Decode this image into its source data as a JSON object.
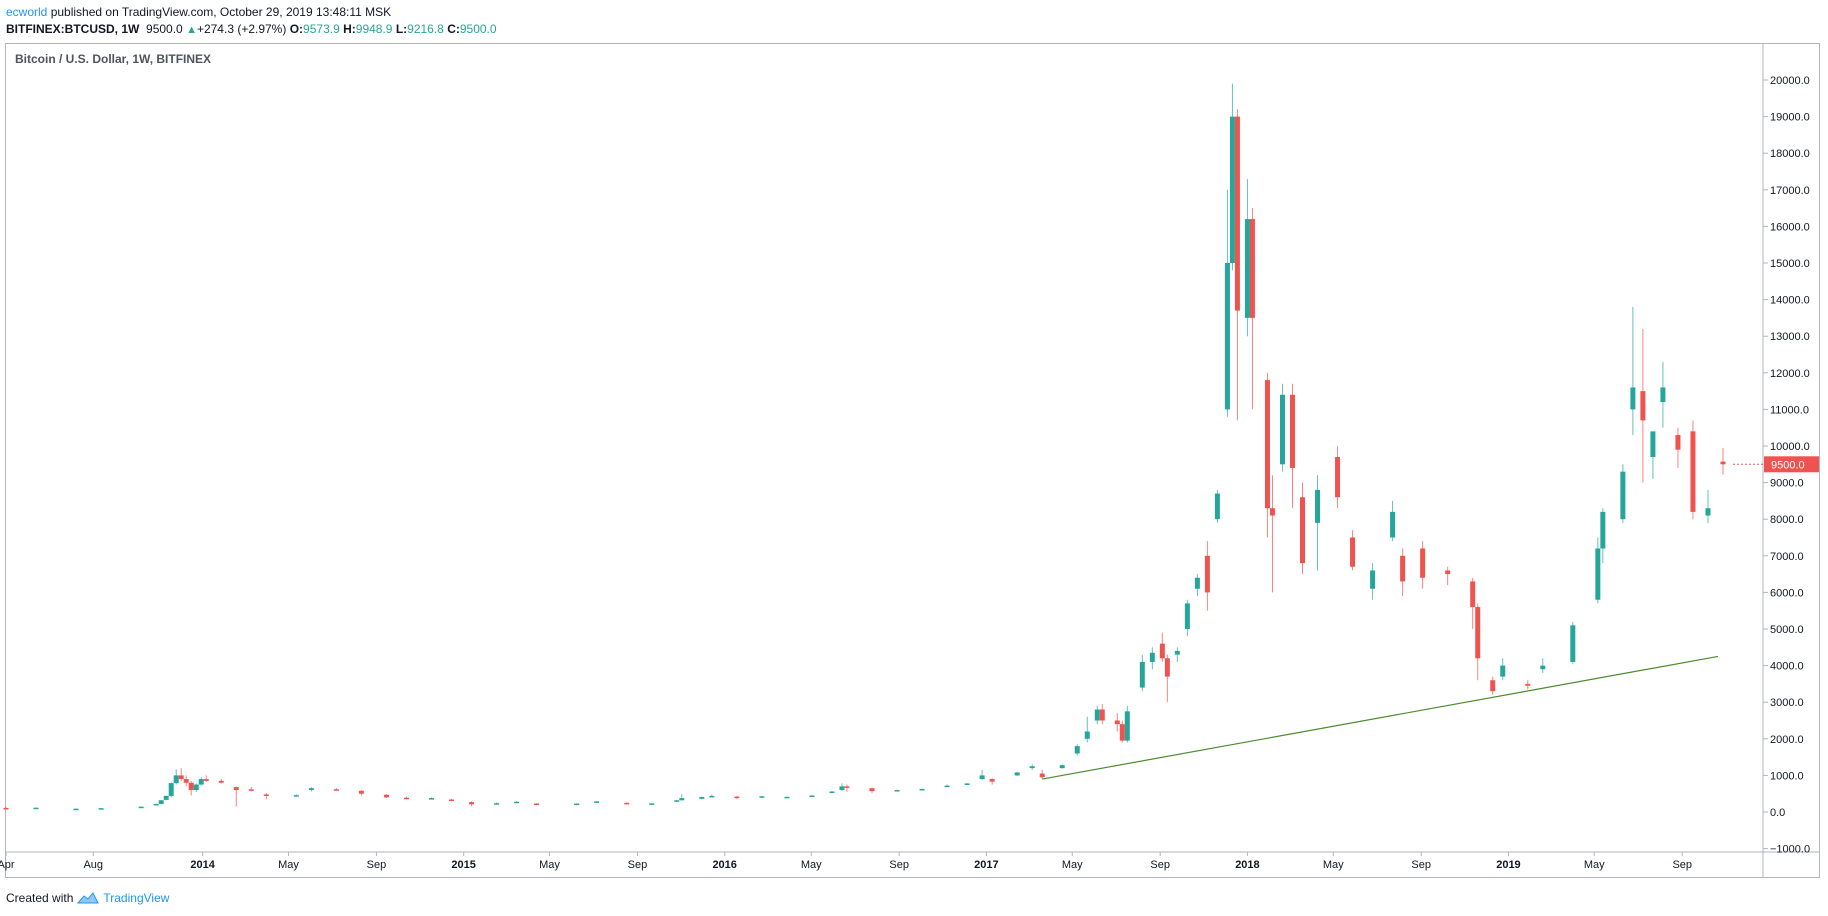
{
  "header": {
    "author": "ecworld",
    "published_text": " published on TradingView.com, October 29, 2019 13:48:11 MSK",
    "symbol": "BITFINEX:BTCUSD, 1W",
    "last": "9500.0",
    "change": "+274.3 (+2.97%)",
    "open_label": "O:",
    "open": "9573.9",
    "high_label": "H:",
    "high": "9948.9",
    "low_label": "L:",
    "low": "9216.8",
    "close_label": "C:",
    "close": "9500.0"
  },
  "footer": {
    "created_with": "Created with",
    "brand": "TradingView"
  },
  "colors": {
    "up": "#26a69a",
    "down": "#ef5350",
    "trendline": "#4b8b2f",
    "axis": "#b2b5be",
    "price_label_bg": "#ef5350"
  },
  "chart_data": {
    "type": "candlestick",
    "title": "Bitcoin / U.S. Dollar, 1W, BITFINEX",
    "ylim": [
      -1000,
      20500
    ],
    "y_ticks": [
      -1000,
      0,
      1000,
      2000,
      3000,
      4000,
      5000,
      6000,
      7000,
      8000,
      9000,
      10000,
      11000,
      12000,
      13000,
      14000,
      15000,
      16000,
      17000,
      18000,
      19000,
      20000
    ],
    "y_tick_labels": [
      "−1000.0",
      "0.0",
      "1000.0",
      "2000.0",
      "3000.0",
      "4000.0",
      "5000.0",
      "6000.0",
      "7000.0",
      "8000.0",
      "9000.0",
      "10000.0",
      "11000.0",
      "12000.0",
      "13000.0",
      "14000.0",
      "15000.0",
      "16000.0",
      "17000.0",
      "18000.0",
      "19000.0",
      "20000.0"
    ],
    "x_ticks": [
      {
        "date": "2013-04-01",
        "label": "Apr",
        "bold": false
      },
      {
        "date": "2013-08-01",
        "label": "Aug",
        "bold": false
      },
      {
        "date": "2014-01-01",
        "label": "2014",
        "bold": true
      },
      {
        "date": "2014-05-01",
        "label": "May",
        "bold": false
      },
      {
        "date": "2014-09-01",
        "label": "Sep",
        "bold": false
      },
      {
        "date": "2015-01-01",
        "label": "2015",
        "bold": true
      },
      {
        "date": "2015-05-01",
        "label": "May",
        "bold": false
      },
      {
        "date": "2015-09-01",
        "label": "Sep",
        "bold": false
      },
      {
        "date": "2016-01-01",
        "label": "2016",
        "bold": true
      },
      {
        "date": "2016-05-01",
        "label": "May",
        "bold": false
      },
      {
        "date": "2016-09-01",
        "label": "Sep",
        "bold": false
      },
      {
        "date": "2017-01-01",
        "label": "2017",
        "bold": true
      },
      {
        "date": "2017-05-01",
        "label": "May",
        "bold": false
      },
      {
        "date": "2017-09-01",
        "label": "Sep",
        "bold": false
      },
      {
        "date": "2018-01-01",
        "label": "2018",
        "bold": true
      },
      {
        "date": "2018-05-01",
        "label": "May",
        "bold": false
      },
      {
        "date": "2018-09-01",
        "label": "Sep",
        "bold": false
      },
      {
        "date": "2019-01-01",
        "label": "2019",
        "bold": true
      },
      {
        "date": "2019-05-01",
        "label": "May",
        "bold": false
      },
      {
        "date": "2019-09-01",
        "label": "Sep",
        "bold": false
      }
    ],
    "last_price_label": "9500.0",
    "last_price": 9500,
    "trendline": [
      {
        "date": "2017-03-20",
        "value": 900
      },
      {
        "date": "2019-10-21",
        "value": 4250
      }
    ],
    "candles": [
      {
        "date": "2013-04-01",
        "o": 110,
        "h": 140,
        "l": 70,
        "c": 100
      },
      {
        "date": "2013-05-13",
        "o": 115,
        "h": 125,
        "l": 100,
        "c": 118
      },
      {
        "date": "2013-07-08",
        "o": 80,
        "h": 95,
        "l": 70,
        "c": 90
      },
      {
        "date": "2013-08-12",
        "o": 100,
        "h": 110,
        "l": 95,
        "c": 105
      },
      {
        "date": "2013-10-07",
        "o": 130,
        "h": 150,
        "l": 120,
        "c": 145
      },
      {
        "date": "2013-10-28",
        "o": 190,
        "h": 230,
        "l": 180,
        "c": 220
      },
      {
        "date": "2013-11-04",
        "o": 220,
        "h": 330,
        "l": 210,
        "c": 320
      },
      {
        "date": "2013-11-11",
        "o": 330,
        "h": 450,
        "l": 320,
        "c": 440
      },
      {
        "date": "2013-11-18",
        "o": 440,
        "h": 800,
        "l": 400,
        "c": 790
      },
      {
        "date": "2013-11-25",
        "o": 790,
        "h": 1170,
        "l": 750,
        "c": 1000
      },
      {
        "date": "2013-12-02",
        "o": 1000,
        "h": 1200,
        "l": 850,
        "c": 900
      },
      {
        "date": "2013-12-09",
        "o": 900,
        "h": 1000,
        "l": 700,
        "c": 800
      },
      {
        "date": "2013-12-16",
        "o": 800,
        "h": 850,
        "l": 450,
        "c": 600
      },
      {
        "date": "2013-12-23",
        "o": 600,
        "h": 780,
        "l": 550,
        "c": 750
      },
      {
        "date": "2013-12-30",
        "o": 750,
        "h": 950,
        "l": 720,
        "c": 900
      },
      {
        "date": "2014-01-06",
        "o": 900,
        "h": 1000,
        "l": 820,
        "c": 850
      },
      {
        "date": "2014-01-27",
        "o": 850,
        "h": 900,
        "l": 780,
        "c": 800
      },
      {
        "date": "2014-02-17",
        "o": 680,
        "h": 700,
        "l": 150,
        "c": 600
      },
      {
        "date": "2014-03-10",
        "o": 620,
        "h": 680,
        "l": 560,
        "c": 580
      },
      {
        "date": "2014-03-31",
        "o": 480,
        "h": 520,
        "l": 350,
        "c": 460
      },
      {
        "date": "2014-05-12",
        "o": 450,
        "h": 480,
        "l": 430,
        "c": 460
      },
      {
        "date": "2014-06-02",
        "o": 600,
        "h": 680,
        "l": 560,
        "c": 650
      },
      {
        "date": "2014-07-07",
        "o": 620,
        "h": 650,
        "l": 590,
        "c": 610
      },
      {
        "date": "2014-08-11",
        "o": 580,
        "h": 600,
        "l": 450,
        "c": 500
      },
      {
        "date": "2014-09-15",
        "o": 470,
        "h": 490,
        "l": 380,
        "c": 400
      },
      {
        "date": "2014-10-13",
        "o": 390,
        "h": 420,
        "l": 350,
        "c": 380
      },
      {
        "date": "2014-11-17",
        "o": 380,
        "h": 400,
        "l": 360,
        "c": 380
      },
      {
        "date": "2014-12-15",
        "o": 340,
        "h": 360,
        "l": 300,
        "c": 320
      },
      {
        "date": "2015-01-12",
        "o": 270,
        "h": 290,
        "l": 160,
        "c": 210
      },
      {
        "date": "2015-02-16",
        "o": 240,
        "h": 260,
        "l": 220,
        "c": 240
      },
      {
        "date": "2015-03-16",
        "o": 270,
        "h": 300,
        "l": 260,
        "c": 280
      },
      {
        "date": "2015-04-13",
        "o": 230,
        "h": 240,
        "l": 220,
        "c": 225
      },
      {
        "date": "2015-06-08",
        "o": 225,
        "h": 235,
        "l": 220,
        "c": 230
      },
      {
        "date": "2015-07-06",
        "o": 270,
        "h": 300,
        "l": 260,
        "c": 290
      },
      {
        "date": "2015-08-17",
        "o": 250,
        "h": 260,
        "l": 200,
        "c": 230
      },
      {
        "date": "2015-09-21",
        "o": 230,
        "h": 240,
        "l": 225,
        "c": 235
      },
      {
        "date": "2015-10-26",
        "o": 280,
        "h": 330,
        "l": 275,
        "c": 320
      },
      {
        "date": "2015-11-02",
        "o": 320,
        "h": 490,
        "l": 310,
        "c": 380
      },
      {
        "date": "2015-11-30",
        "o": 360,
        "h": 420,
        "l": 350,
        "c": 410
      },
      {
        "date": "2015-12-14",
        "o": 420,
        "h": 470,
        "l": 400,
        "c": 440
      },
      {
        "date": "2016-01-18",
        "o": 420,
        "h": 440,
        "l": 360,
        "c": 380
      },
      {
        "date": "2016-02-22",
        "o": 420,
        "h": 440,
        "l": 400,
        "c": 430
      },
      {
        "date": "2016-03-28",
        "o": 410,
        "h": 420,
        "l": 400,
        "c": 415
      },
      {
        "date": "2016-05-02",
        "o": 440,
        "h": 460,
        "l": 430,
        "c": 450
      },
      {
        "date": "2016-05-30",
        "o": 530,
        "h": 570,
        "l": 510,
        "c": 560
      },
      {
        "date": "2016-06-13",
        "o": 600,
        "h": 780,
        "l": 580,
        "c": 700
      },
      {
        "date": "2016-06-20",
        "o": 700,
        "h": 750,
        "l": 550,
        "c": 660
      },
      {
        "date": "2016-07-25",
        "o": 650,
        "h": 670,
        "l": 520,
        "c": 570
      },
      {
        "date": "2016-08-29",
        "o": 570,
        "h": 610,
        "l": 560,
        "c": 600
      },
      {
        "date": "2016-10-03",
        "o": 610,
        "h": 640,
        "l": 600,
        "c": 630
      },
      {
        "date": "2016-11-07",
        "o": 700,
        "h": 750,
        "l": 680,
        "c": 720
      },
      {
        "date": "2016-12-05",
        "o": 750,
        "h": 790,
        "l": 740,
        "c": 780
      },
      {
        "date": "2016-12-26",
        "o": 900,
        "h": 1150,
        "l": 880,
        "c": 1000
      },
      {
        "date": "2017-01-09",
        "o": 900,
        "h": 920,
        "l": 750,
        "c": 830
      },
      {
        "date": "2017-02-13",
        "o": 1000,
        "h": 1100,
        "l": 980,
        "c": 1080
      },
      {
        "date": "2017-03-06",
        "o": 1200,
        "h": 1300,
        "l": 1150,
        "c": 1250
      },
      {
        "date": "2017-03-20",
        "o": 1050,
        "h": 1150,
        "l": 900,
        "c": 950
      },
      {
        "date": "2017-04-17",
        "o": 1200,
        "h": 1300,
        "l": 1180,
        "c": 1280
      },
      {
        "date": "2017-05-08",
        "o": 1600,
        "h": 1850,
        "l": 1550,
        "c": 1800
      },
      {
        "date": "2017-05-22",
        "o": 2000,
        "h": 2600,
        "l": 1900,
        "c": 2200
      },
      {
        "date": "2017-06-05",
        "o": 2500,
        "h": 2900,
        "l": 2400,
        "c": 2800
      },
      {
        "date": "2017-06-12",
        "o": 2800,
        "h": 2950,
        "l": 2400,
        "c": 2500
      },
      {
        "date": "2017-07-03",
        "o": 2500,
        "h": 2700,
        "l": 2200,
        "c": 2400
      },
      {
        "date": "2017-07-10",
        "o": 2400,
        "h": 2500,
        "l": 1900,
        "c": 1950
      },
      {
        "date": "2017-07-17",
        "o": 1950,
        "h": 2900,
        "l": 1900,
        "c": 2750
      },
      {
        "date": "2017-08-07",
        "o": 3400,
        "h": 4300,
        "l": 3300,
        "c": 4100
      },
      {
        "date": "2017-08-21",
        "o": 4100,
        "h": 4500,
        "l": 3900,
        "c": 4350
      },
      {
        "date": "2017-09-04",
        "o": 4600,
        "h": 4900,
        "l": 4100,
        "c": 4200
      },
      {
        "date": "2017-09-11",
        "o": 4200,
        "h": 4300,
        "l": 3000,
        "c": 3700
      },
      {
        "date": "2017-09-25",
        "o": 4300,
        "h": 4500,
        "l": 4100,
        "c": 4400
      },
      {
        "date": "2017-10-09",
        "o": 5000,
        "h": 5800,
        "l": 4800,
        "c": 5700
      },
      {
        "date": "2017-10-23",
        "o": 6100,
        "h": 6500,
        "l": 5900,
        "c": 6400
      },
      {
        "date": "2017-11-06",
        "o": 7000,
        "h": 7400,
        "l": 5500,
        "c": 6000
      },
      {
        "date": "2017-11-20",
        "o": 8000,
        "h": 8800,
        "l": 7900,
        "c": 8700
      },
      {
        "date": "2017-12-04",
        "o": 11000,
        "h": 17000,
        "l": 10800,
        "c": 15000
      },
      {
        "date": "2017-12-11",
        "o": 15000,
        "h": 19900,
        "l": 14800,
        "c": 19000
      },
      {
        "date": "2017-12-18",
        "o": 19000,
        "h": 19200,
        "l": 10700,
        "c": 13700
      },
      {
        "date": "2018-01-01",
        "o": 13500,
        "h": 17300,
        "l": 13000,
        "c": 16200
      },
      {
        "date": "2018-01-08",
        "o": 16200,
        "h": 16500,
        "l": 11000,
        "c": 13500
      },
      {
        "date": "2018-01-29",
        "o": 11800,
        "h": 12000,
        "l": 7500,
        "c": 8300
      },
      {
        "date": "2018-02-05",
        "o": 8300,
        "h": 9200,
        "l": 6000,
        "c": 8100
      },
      {
        "date": "2018-02-19",
        "o": 9500,
        "h": 11700,
        "l": 9300,
        "c": 11400
      },
      {
        "date": "2018-03-05",
        "o": 11400,
        "h": 11700,
        "l": 8300,
        "c": 9400
      },
      {
        "date": "2018-03-19",
        "o": 8600,
        "h": 9000,
        "l": 6500,
        "c": 6800
      },
      {
        "date": "2018-04-09",
        "o": 7900,
        "h": 9200,
        "l": 6600,
        "c": 8800
      },
      {
        "date": "2018-05-07",
        "o": 9700,
        "h": 10000,
        "l": 8300,
        "c": 8600
      },
      {
        "date": "2018-05-28",
        "o": 7500,
        "h": 7700,
        "l": 6600,
        "c": 6700
      },
      {
        "date": "2018-06-25",
        "o": 6100,
        "h": 6800,
        "l": 5800,
        "c": 6600
      },
      {
        "date": "2018-07-23",
        "o": 7500,
        "h": 8500,
        "l": 7400,
        "c": 8200
      },
      {
        "date": "2018-08-06",
        "o": 7000,
        "h": 7200,
        "l": 5900,
        "c": 6300
      },
      {
        "date": "2018-09-03",
        "o": 7200,
        "h": 7400,
        "l": 6100,
        "c": 6400
      },
      {
        "date": "2018-10-08",
        "o": 6600,
        "h": 6700,
        "l": 6200,
        "c": 6500
      },
      {
        "date": "2018-11-12",
        "o": 6300,
        "h": 6400,
        "l": 5000,
        "c": 5600
      },
      {
        "date": "2018-11-19",
        "o": 5600,
        "h": 5700,
        "l": 3600,
        "c": 4200
      },
      {
        "date": "2018-12-10",
        "o": 3600,
        "h": 3700,
        "l": 3200,
        "c": 3300
      },
      {
        "date": "2018-12-24",
        "o": 3700,
        "h": 4200,
        "l": 3600,
        "c": 4000
      },
      {
        "date": "2019-01-28",
        "o": 3500,
        "h": 3600,
        "l": 3350,
        "c": 3450
      },
      {
        "date": "2019-02-18",
        "o": 3900,
        "h": 4200,
        "l": 3800,
        "c": 4000
      },
      {
        "date": "2019-04-01",
        "o": 4100,
        "h": 5200,
        "l": 4050,
        "c": 5100
      },
      {
        "date": "2019-05-06",
        "o": 5800,
        "h": 7500,
        "l": 5700,
        "c": 7200
      },
      {
        "date": "2019-05-13",
        "o": 7200,
        "h": 8300,
        "l": 6800,
        "c": 8200
      },
      {
        "date": "2019-06-10",
        "o": 8000,
        "h": 9500,
        "l": 7900,
        "c": 9300
      },
      {
        "date": "2019-06-24",
        "o": 11000,
        "h": 13800,
        "l": 10300,
        "c": 11600
      },
      {
        "date": "2019-07-08",
        "o": 11500,
        "h": 13200,
        "l": 9000,
        "c": 10700
      },
      {
        "date": "2019-07-22",
        "o": 9700,
        "h": 10200,
        "l": 9100,
        "c": 10400
      },
      {
        "date": "2019-08-05",
        "o": 11200,
        "h": 12300,
        "l": 10500,
        "c": 11600
      },
      {
        "date": "2019-08-26",
        "o": 10300,
        "h": 10500,
        "l": 9400,
        "c": 9900
      },
      {
        "date": "2019-09-16",
        "o": 10400,
        "h": 10700,
        "l": 8000,
        "c": 8200
      },
      {
        "date": "2019-10-07",
        "o": 8100,
        "h": 8800,
        "l": 7900,
        "c": 8300
      },
      {
        "date": "2019-10-28",
        "o": 9573.9,
        "h": 9948.9,
        "l": 9216.8,
        "c": 9500
      }
    ]
  }
}
